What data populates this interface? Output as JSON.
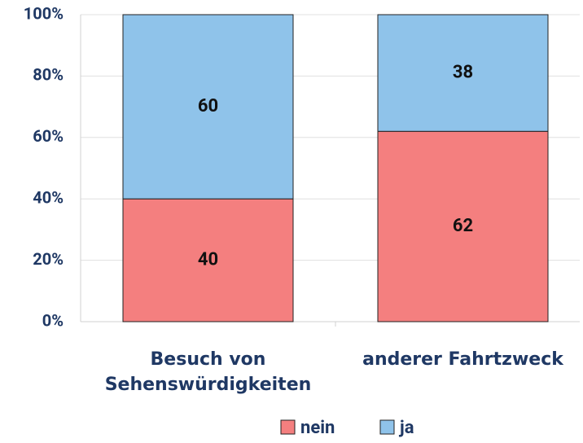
{
  "chart_data": {
    "type": "stacked_bar",
    "categories": [
      "Besuch von Sehenswürdigkeiten",
      "anderer Fahrtzweck"
    ],
    "series": [
      {
        "name": "nein",
        "color": "#f47f7f",
        "values": [
          40,
          62
        ]
      },
      {
        "name": "ja",
        "color": "#8fc3ea",
        "values": [
          60,
          38
        ]
      }
    ],
    "ylim": [
      0,
      100
    ],
    "yticks": [
      {
        "value": 0,
        "label": "0%"
      },
      {
        "value": 20,
        "label": "20%"
      },
      {
        "value": 40,
        "label": "40%"
      },
      {
        "value": 60,
        "label": "60%"
      },
      {
        "value": 80,
        "label": "80%"
      },
      {
        "value": 100,
        "label": "100%"
      }
    ],
    "grid": true,
    "legend": "bottom"
  }
}
